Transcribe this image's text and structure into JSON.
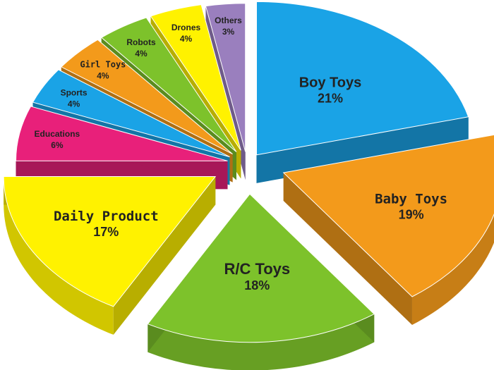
{
  "chart_data": {
    "type": "pie",
    "title": "",
    "style": "exploded-3d",
    "slices": [
      {
        "label": "Boy Toys",
        "value": 21,
        "display": "21%",
        "color": "#1aa3e6"
      },
      {
        "label": "Baby Toys",
        "value": 19,
        "display": "19%",
        "color": "#f39a1b"
      },
      {
        "label": "R/C Toys",
        "value": 18,
        "display": "18%",
        "color": "#7dc22b"
      },
      {
        "label": "Daily Product",
        "value": 17,
        "display": "17%",
        "color": "#fff200"
      },
      {
        "label": "Educations",
        "value": 6,
        "display": "6%",
        "color": "#e8207a"
      },
      {
        "label": "Sports",
        "value": 4,
        "display": "4%",
        "color": "#1aa3e6"
      },
      {
        "label": "Girl Toys",
        "value": 4,
        "display": "4%",
        "color": "#f39a1b"
      },
      {
        "label": "Robots",
        "value": 4,
        "display": "4%",
        "color": "#7dc22b"
      },
      {
        "label": "Drones",
        "value": 4,
        "display": "4%",
        "color": "#fff200"
      },
      {
        "label": "Others",
        "value": 3,
        "display": "3%",
        "color": "#9a7fbe"
      }
    ]
  }
}
